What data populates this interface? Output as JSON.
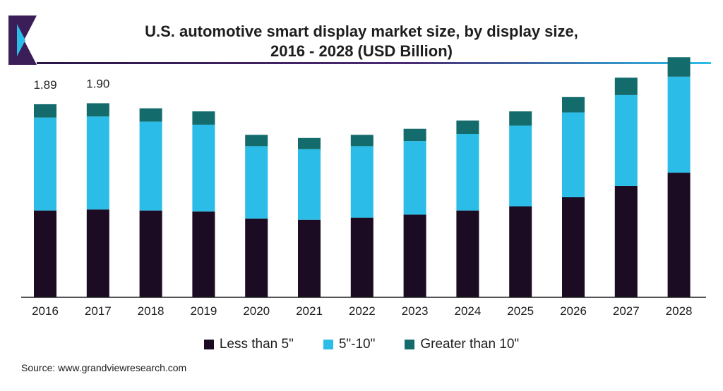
{
  "header": {
    "title_line1": "U.S. automotive smart display market size, by display size,",
    "title_line2": "2016 - 2028 (USD Billion)"
  },
  "colors": {
    "less_than_5": "#1b0c24",
    "5_to_10": "#2bbde8",
    "greater_than_10": "#136b6b",
    "logo_purple": "#3b1d58",
    "rule_left": "#2b1545",
    "rule_right": "#2bbde8"
  },
  "chart_data": {
    "type": "bar",
    "stacked": true,
    "categories": [
      "2016",
      "2017",
      "2018",
      "2019",
      "2020",
      "2021",
      "2022",
      "2023",
      "2024",
      "2025",
      "2026",
      "2027",
      "2028"
    ],
    "series": [
      {
        "name": "Less than 5\"",
        "values": [
          0.85,
          0.86,
          0.85,
          0.84,
          0.77,
          0.76,
          0.78,
          0.81,
          0.85,
          0.89,
          0.98,
          1.09,
          1.22
        ]
      },
      {
        "name": "5\"-10\"",
        "values": [
          0.91,
          0.91,
          0.87,
          0.85,
          0.71,
          0.69,
          0.7,
          0.72,
          0.75,
          0.79,
          0.83,
          0.89,
          0.94
        ]
      },
      {
        "name": "Greater than 10\"",
        "values": [
          0.13,
          0.13,
          0.13,
          0.13,
          0.11,
          0.11,
          0.11,
          0.12,
          0.13,
          0.14,
          0.15,
          0.17,
          0.19
        ]
      }
    ],
    "data_labels": [
      {
        "category": "2016",
        "text": "1.89"
      },
      {
        "category": "2017",
        "text": "1.90"
      }
    ],
    "ylim": [
      0,
      2.4
    ],
    "grid": false,
    "legend_position": "bottom"
  },
  "footer": {
    "source": "Source: www.grandviewresearch.com"
  }
}
